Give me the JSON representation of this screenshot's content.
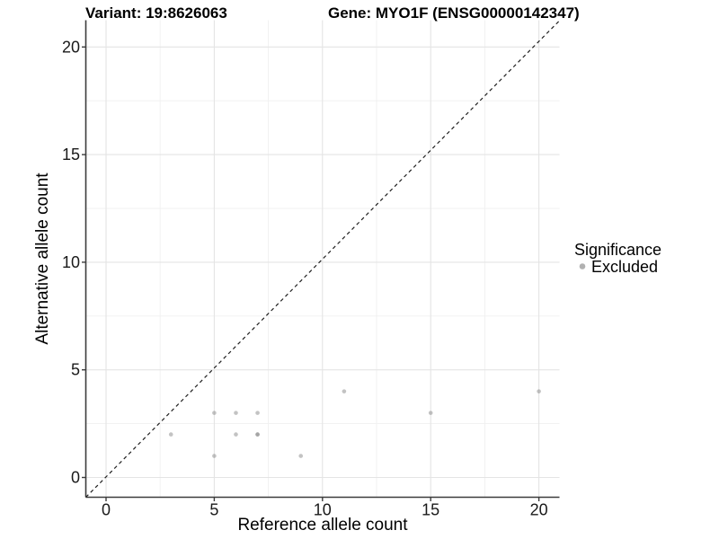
{
  "chart_data": {
    "type": "scatter",
    "title_left": "Variant: 19:8626063",
    "title_right": "Gene: MYO1F (ENSG00000142347)",
    "xlabel": "Reference allele count",
    "ylabel": "Alternative allele count",
    "xlim": [
      -0.9,
      20.9
    ],
    "ylim": [
      -0.9,
      21.2
    ],
    "x_ticks": [
      0,
      5,
      10,
      15,
      20
    ],
    "y_ticks": [
      0,
      5,
      10,
      15,
      20
    ],
    "x_minor_gridlines": [
      2.5,
      7.5,
      12.5,
      17.5
    ],
    "y_minor_gridlines": [
      2.5,
      7.5,
      12.5,
      17.5
    ],
    "grid": true,
    "identity_line": {
      "type": "abline",
      "slope": 1,
      "intercept": 0,
      "style": "dashed"
    },
    "series": [
      {
        "name": "Excluded",
        "points": [
          [
            3,
            2
          ],
          [
            5,
            1
          ],
          [
            5,
            3
          ],
          [
            6,
            2
          ],
          [
            6,
            3
          ],
          [
            7,
            2
          ],
          [
            7,
            2
          ],
          [
            7,
            3
          ],
          [
            9,
            1
          ],
          [
            11,
            4
          ],
          [
            15,
            3
          ],
          [
            20,
            4
          ]
        ]
      }
    ],
    "legend": {
      "title": "Significance",
      "position": "right",
      "items": [
        {
          "label": "Excluded",
          "swatch": "circle"
        }
      ]
    },
    "colors": {
      "point": "#878787",
      "point_opacity": 0.5,
      "legend_swatch": "#b1b1b1",
      "grid_major": "#e4e4e4",
      "grid_minor": "#f0f0f0",
      "axis_line": "#3c3c3c",
      "tick_text": "#1a1a1a",
      "title_text": "#000000",
      "identity_line": "#1f1f1f",
      "background": "#ffffff"
    }
  }
}
